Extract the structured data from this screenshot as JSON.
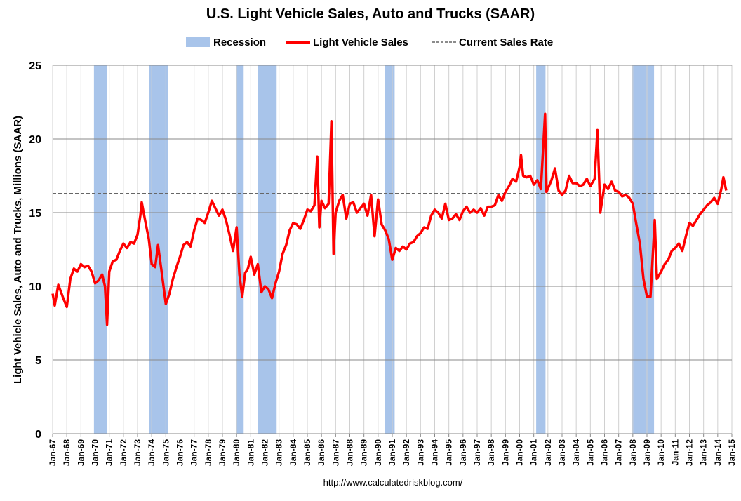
{
  "chart_data": {
    "type": "line",
    "title": "U.S. Light Vehicle Sales, Auto and Trucks (SAAR)",
    "y_label": "Light Vehicle Sales, Auto and Trucks, Millions (SAAR)",
    "source": "http://www.calculatedriskblog.com/",
    "xlim": [
      1967,
      2015
    ],
    "ylim": [
      0,
      25
    ],
    "yticks": [
      0,
      5,
      10,
      15,
      20,
      25
    ],
    "grid": true,
    "xticks": [
      {
        "value": 1967,
        "label": "Jan-67"
      },
      {
        "value": 1968,
        "label": "Jan-68"
      },
      {
        "value": 1969,
        "label": "Jan-69"
      },
      {
        "value": 1970,
        "label": "Jan-70"
      },
      {
        "value": 1971,
        "label": "Jan-71"
      },
      {
        "value": 1972,
        "label": "Jan-72"
      },
      {
        "value": 1973,
        "label": "Jan-73"
      },
      {
        "value": 1974,
        "label": "Jan-74"
      },
      {
        "value": 1975,
        "label": "Jan-75"
      },
      {
        "value": 1976,
        "label": "Jan-76"
      },
      {
        "value": 1977,
        "label": "Jan-77"
      },
      {
        "value": 1978,
        "label": "Jan-78"
      },
      {
        "value": 1979,
        "label": "Jan-79"
      },
      {
        "value": 1980,
        "label": "Jan-80"
      },
      {
        "value": 1981,
        "label": "Jan-81"
      },
      {
        "value": 1982,
        "label": "Jan-82"
      },
      {
        "value": 1983,
        "label": "Jan-83"
      },
      {
        "value": 1984,
        "label": "Jan-84"
      },
      {
        "value": 1985,
        "label": "Jan-85"
      },
      {
        "value": 1986,
        "label": "Jan-86"
      },
      {
        "value": 1987,
        "label": "Jan-87"
      },
      {
        "value": 1988,
        "label": "Jan-88"
      },
      {
        "value": 1989,
        "label": "Jan-89"
      },
      {
        "value": 1990,
        "label": "Jan-90"
      },
      {
        "value": 1991,
        "label": "Jan-91"
      },
      {
        "value": 1992,
        "label": "Jan-92"
      },
      {
        "value": 1993,
        "label": "Jan-93"
      },
      {
        "value": 1994,
        "label": "Jan-94"
      },
      {
        "value": 1995,
        "label": "Jan-95"
      },
      {
        "value": 1996,
        "label": "Jan-96"
      },
      {
        "value": 1997,
        "label": "Jan-97"
      },
      {
        "value": 1998,
        "label": "Jan-98"
      },
      {
        "value": 1999,
        "label": "Jan-99"
      },
      {
        "value": 2000,
        "label": "Jan-00"
      },
      {
        "value": 2001,
        "label": "Jan-01"
      },
      {
        "value": 2002,
        "label": "Jan-02"
      },
      {
        "value": 2003,
        "label": "Jan-03"
      },
      {
        "value": 2004,
        "label": "Jan-04"
      },
      {
        "value": 2005,
        "label": "Jan-05"
      },
      {
        "value": 2006,
        "label": "Jan-06"
      },
      {
        "value": 2007,
        "label": "Jan-07"
      },
      {
        "value": 2008,
        "label": "Jan-08"
      },
      {
        "value": 2009,
        "label": "Jan-09"
      },
      {
        "value": 2010,
        "label": "Jan-10"
      },
      {
        "value": 2011,
        "label": "Jan-11"
      },
      {
        "value": 2012,
        "label": "Jan-12"
      },
      {
        "value": 2013,
        "label": "Jan-13"
      },
      {
        "value": 2014,
        "label": "Jan-14"
      },
      {
        "value": 2015,
        "label": "Jan-15"
      }
    ],
    "recessions": {
      "name": "Recession",
      "color": "#a8c4ea",
      "periods": [
        [
          1969.92,
          1970.83
        ],
        [
          1973.83,
          1975.17
        ],
        [
          1980.0,
          1980.5
        ],
        [
          1981.5,
          1982.83
        ],
        [
          1990.5,
          1991.17
        ],
        [
          2001.17,
          2001.83
        ],
        [
          2007.92,
          2009.5
        ]
      ]
    },
    "reference_line": {
      "name": "Current Sales Rate",
      "value": 16.3,
      "color": "#666666"
    },
    "x": [
      1967.0,
      1967.15,
      1967.4,
      1967.75,
      1968.0,
      1968.25,
      1968.5,
      1968.75,
      1969.0,
      1969.25,
      1969.5,
      1969.75,
      1970.0,
      1970.25,
      1970.5,
      1970.7,
      1970.85,
      1971.0,
      1971.25,
      1971.5,
      1971.75,
      1972.0,
      1972.25,
      1972.5,
      1972.75,
      1973.0,
      1973.2,
      1973.3,
      1973.55,
      1973.8,
      1974.0,
      1974.25,
      1974.45,
      1974.7,
      1975.0,
      1975.25,
      1975.5,
      1975.75,
      1976.0,
      1976.25,
      1976.5,
      1976.75,
      1977.0,
      1977.25,
      1977.5,
      1977.75,
      1978.0,
      1978.25,
      1978.5,
      1978.75,
      1979.0,
      1979.25,
      1979.5,
      1979.75,
      1980.0,
      1980.2,
      1980.4,
      1980.6,
      1980.8,
      1981.0,
      1981.25,
      1981.5,
      1981.75,
      1982.0,
      1982.25,
      1982.5,
      1982.75,
      1983.0,
      1983.25,
      1983.5,
      1983.75,
      1984.0,
      1984.25,
      1984.5,
      1984.75,
      1985.0,
      1985.25,
      1985.5,
      1985.7,
      1985.85,
      1986.0,
      1986.25,
      1986.5,
      1986.7,
      1986.85,
      1987.0,
      1987.25,
      1987.5,
      1987.75,
      1988.0,
      1988.25,
      1988.5,
      1988.75,
      1989.0,
      1989.25,
      1989.5,
      1989.75,
      1990.0,
      1990.25,
      1990.5,
      1990.75,
      1991.0,
      1991.25,
      1991.5,
      1991.75,
      1992.0,
      1992.25,
      1992.5,
      1992.75,
      1993.0,
      1993.25,
      1993.5,
      1993.75,
      1994.0,
      1994.25,
      1994.5,
      1994.75,
      1995.0,
      1995.25,
      1995.5,
      1995.75,
      1996.0,
      1996.25,
      1996.5,
      1996.75,
      1997.0,
      1997.25,
      1997.5,
      1997.75,
      1998.0,
      1998.25,
      1998.5,
      1998.75,
      1999.0,
      1999.25,
      1999.5,
      1999.75,
      2000.0,
      2000.1,
      2000.25,
      2000.5,
      2000.75,
      2001.0,
      2001.25,
      2001.5,
      2001.8,
      2001.9,
      2002.25,
      2002.5,
      2002.75,
      2003.0,
      2003.25,
      2003.5,
      2003.75,
      2004.0,
      2004.25,
      2004.5,
      2004.75,
      2005.0,
      2005.3,
      2005.5,
      2005.7,
      2006.0,
      2006.25,
      2006.5,
      2006.75,
      2007.0,
      2007.25,
      2007.5,
      2007.75,
      2008.0,
      2008.25,
      2008.5,
      2008.75,
      2009.0,
      2009.25,
      2009.55,
      2009.7,
      2010.0,
      2010.25,
      2010.5,
      2010.75,
      2011.0,
      2011.25,
      2011.5,
      2011.75,
      2012.0,
      2012.25,
      2012.5,
      2012.75,
      2013.0,
      2013.25,
      2013.5,
      2013.75,
      2014.0,
      2014.25,
      2014.4,
      2014.6
    ],
    "series": [
      {
        "name": "Light Vehicle Sales",
        "color": "#ff0000",
        "values": [
          9.5,
          8.7,
          10.1,
          9.2,
          8.6,
          10.5,
          11.2,
          11.0,
          11.5,
          11.3,
          11.4,
          11.0,
          10.2,
          10.4,
          10.8,
          10.0,
          7.4,
          11.0,
          11.7,
          11.8,
          12.4,
          12.9,
          12.6,
          13.0,
          12.9,
          13.5,
          14.8,
          15.7,
          14.4,
          13.2,
          11.5,
          11.3,
          12.8,
          11.0,
          8.8,
          9.5,
          10.5,
          11.3,
          12.0,
          12.8,
          13.0,
          12.7,
          13.8,
          14.6,
          14.5,
          14.3,
          15.0,
          15.8,
          15.3,
          14.8,
          15.2,
          14.5,
          13.5,
          12.4,
          14.0,
          10.8,
          9.3,
          10.9,
          11.2,
          12.0,
          10.8,
          11.5,
          9.6,
          10.0,
          9.8,
          9.2,
          10.2,
          11.0,
          12.2,
          12.8,
          13.8,
          14.3,
          14.2,
          13.9,
          14.5,
          15.2,
          15.1,
          15.5,
          18.8,
          14.0,
          15.8,
          15.3,
          15.6,
          21.2,
          12.2,
          15.0,
          15.8,
          16.2,
          14.6,
          15.6,
          15.7,
          15.0,
          15.3,
          15.6,
          14.8,
          16.2,
          13.4,
          15.9,
          14.2,
          13.8,
          13.2,
          11.8,
          12.6,
          12.4,
          12.7,
          12.5,
          12.9,
          13.0,
          13.4,
          13.6,
          14.0,
          13.9,
          14.8,
          15.2,
          15.0,
          14.6,
          15.6,
          14.5,
          14.6,
          14.9,
          14.5,
          15.1,
          15.4,
          15.0,
          15.2,
          15.0,
          15.3,
          14.8,
          15.4,
          15.4,
          15.5,
          16.2,
          15.8,
          16.4,
          16.8,
          17.3,
          17.1,
          18.1,
          18.9,
          17.5,
          17.4,
          17.5,
          16.9,
          17.2,
          16.6,
          21.7,
          16.4,
          17.2,
          18.0,
          16.5,
          16.2,
          16.5,
          17.5,
          17.0,
          17.0,
          16.8,
          16.9,
          17.3,
          16.8,
          17.3,
          20.6,
          15.0,
          16.9,
          16.6,
          17.1,
          16.5,
          16.4,
          16.1,
          16.2,
          16.0,
          15.6,
          14.2,
          12.9,
          10.5,
          9.3,
          9.3,
          14.5,
          10.5,
          11.0,
          11.5,
          11.8,
          12.4,
          12.6,
          12.9,
          12.4,
          13.4,
          14.3,
          14.1,
          14.5,
          14.9,
          15.2,
          15.5,
          15.7,
          16.0,
          15.6,
          16.6,
          17.4,
          16.5
        ]
      }
    ]
  }
}
